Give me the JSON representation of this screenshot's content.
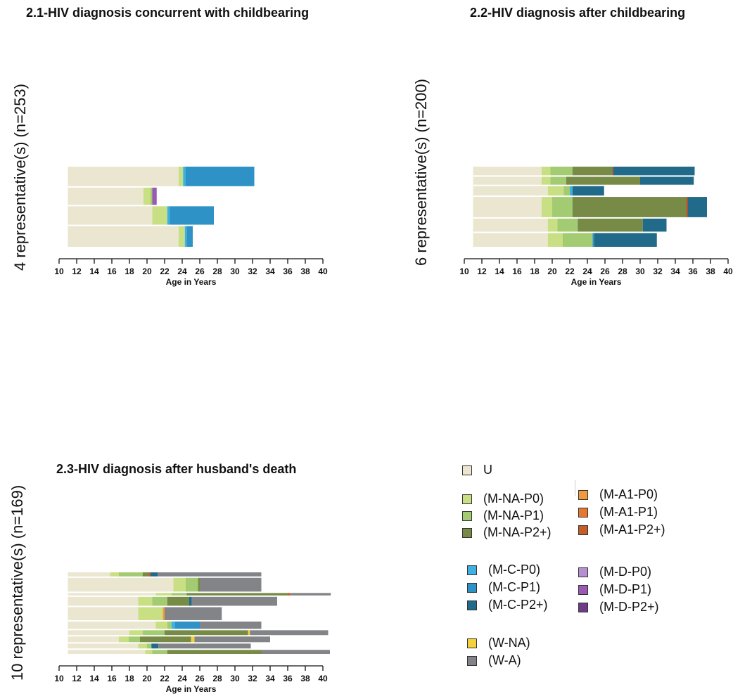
{
  "chart_data": [
    {
      "type": "bar",
      "subtype": "sequence-index-plot",
      "title": "2.1-HIV diagnosis concurrent with childbearing",
      "ylabel": "4 representative(s) (n=253)",
      "xlabel": "Age in Years",
      "xlim": [
        10,
        40
      ],
      "xticks": [
        10,
        12,
        14,
        16,
        18,
        20,
        22,
        24,
        26,
        28,
        30,
        32,
        34,
        36,
        38,
        40
      ],
      "sequences": [
        {
          "weight": 34,
          "segments": [
            [
              "U",
              11,
              23.6
            ],
            [
              "M-NA-P0",
              23.6,
              24.1
            ],
            [
              "M-C-P0",
              24.1,
              24.4
            ],
            [
              "M-C-P1",
              24.4,
              32.2
            ]
          ]
        },
        {
          "weight": 30,
          "segments": [
            [
              "U",
              11,
              19.6
            ],
            [
              "M-NA-P0",
              19.6,
              20.4
            ],
            [
              "M-NA-P1",
              20.4,
              20.6
            ],
            [
              "M-D-P1",
              20.6,
              21.1
            ]
          ]
        },
        {
          "weight": 32,
          "segments": [
            [
              "U",
              11,
              20.6
            ],
            [
              "M-NA-P0",
              20.6,
              22.3
            ],
            [
              "M-C-P0",
              22.3,
              22.6
            ],
            [
              "M-C-P1",
              22.6,
              27.6
            ]
          ]
        },
        {
          "weight": 36,
          "segments": [
            [
              "U",
              11,
              23.6
            ],
            [
              "M-NA-P0",
              23.6,
              24.3
            ],
            [
              "M-C-P0",
              24.3,
              24.5
            ],
            [
              "M-C-P1",
              24.5,
              25.2
            ]
          ]
        }
      ]
    },
    {
      "type": "bar",
      "subtype": "sequence-index-plot",
      "title": "2.2-HIV diagnosis after childbearing",
      "ylabel": "6 representative(s) (n=200)",
      "xlabel": "Age in Years",
      "xlim": [
        10,
        40
      ],
      "xticks": [
        10,
        12,
        14,
        16,
        18,
        20,
        22,
        24,
        26,
        28,
        30,
        32,
        34,
        36,
        38,
        40
      ],
      "sequences": [
        {
          "weight": 12,
          "segments": [
            [
              "U",
              11,
              18.8
            ],
            [
              "M-NA-P0",
              18.8,
              19.8
            ],
            [
              "M-NA-P1",
              19.8,
              22.3
            ],
            [
              "M-NA-P2+",
              22.3,
              26.8
            ],
            [
              "M-A1-P2+",
              26.8,
              26.9
            ],
            [
              "M-C-P2+",
              26.9,
              36.2
            ]
          ]
        },
        {
          "weight": 11,
          "segments": [
            [
              "U",
              11,
              18.8
            ],
            [
              "M-NA-P0",
              18.8,
              19.8
            ],
            [
              "M-NA-P1",
              19.8,
              21.6
            ],
            [
              "M-NA-P2+",
              21.6,
              30.0
            ],
            [
              "M-C-P2+",
              30.0,
              36.1
            ]
          ]
        },
        {
          "weight": 13,
          "segments": [
            [
              "U",
              11,
              19.5
            ],
            [
              "M-NA-P0",
              19.5,
              21.3
            ],
            [
              "M-NA-P1",
              21.3,
              22.0
            ],
            [
              "M-C-P0",
              22.0,
              22.3
            ],
            [
              "M-C-P2+",
              22.3,
              25.9
            ]
          ]
        },
        {
          "weight": 28,
          "segments": [
            [
              "U",
              11,
              18.8
            ],
            [
              "M-NA-P0",
              18.8,
              20.0
            ],
            [
              "M-NA-P1",
              20.0,
              22.3
            ],
            [
              "M-NA-P2+",
              22.3,
              35.2
            ],
            [
              "M-A1-P2+",
              35.2,
              35.4
            ],
            [
              "M-C-P2+",
              35.4,
              37.6
            ]
          ]
        },
        {
          "weight": 18,
          "segments": [
            [
              "U",
              11,
              19.5
            ],
            [
              "M-NA-P0",
              19.5,
              20.6
            ],
            [
              "M-NA-P1",
              20.6,
              22.9
            ],
            [
              "M-NA-P2+",
              22.9,
              30.3
            ],
            [
              "M-C-P2+",
              30.3,
              33.0
            ]
          ]
        },
        {
          "weight": 19,
          "segments": [
            [
              "U",
              11,
              19.5
            ],
            [
              "M-NA-P0",
              19.5,
              21.2
            ],
            [
              "M-NA-P1",
              21.2,
              24.6
            ],
            [
              "M-C-P1",
              24.6,
              24.8
            ],
            [
              "M-C-P2+",
              24.8,
              31.9
            ]
          ]
        }
      ]
    },
    {
      "type": "bar",
      "subtype": "sequence-index-plot",
      "title": "2.3-HIV diagnosis after husband's death",
      "ylabel": "10 representative(s) (n=169)",
      "xlabel": "Age in Years",
      "xlim": [
        10,
        40
      ],
      "xticks": [
        10,
        12,
        14,
        16,
        18,
        20,
        22,
        24,
        26,
        28,
        30,
        32,
        34,
        36,
        38,
        40
      ],
      "sequences": [
        {
          "weight": 5,
          "segments": [
            [
              "U",
              11,
              15.8
            ],
            [
              "M-NA-P0",
              15.8,
              16.8
            ],
            [
              "M-NA-P1",
              16.8,
              19.5
            ],
            [
              "M-NA-P2+",
              19.5,
              20.2
            ],
            [
              "M-A1-P2+",
              20.2,
              20.4
            ],
            [
              "M-C-P2+",
              20.4,
              21.2
            ],
            [
              "W-A",
              21.2,
              33.0
            ]
          ]
        },
        {
          "weight": 17,
          "segments": [
            [
              "U",
              11,
              23.0
            ],
            [
              "M-NA-P0",
              23.0,
              24.4
            ],
            [
              "M-NA-P1",
              24.4,
              25.8
            ],
            [
              "M-NA-P2+",
              25.8,
              26.0
            ],
            [
              "W-A",
              26.0,
              33.0
            ]
          ]
        },
        {
          "weight": 3,
          "segments": [
            [
              "U",
              11,
              21.0
            ],
            [
              "M-NA-P0",
              21.0,
              22.8
            ],
            [
              "M-NA-P1",
              22.8,
              24.5
            ],
            [
              "M-NA-P2+",
              24.5,
              36.0
            ],
            [
              "M-A1-P2+",
              36.0,
              36.3
            ],
            [
              "W-A",
              36.3,
              40.9
            ]
          ]
        },
        {
          "weight": 11,
          "segments": [
            [
              "U",
              11,
              19.0
            ],
            [
              "M-NA-P0",
              19.0,
              20.6
            ],
            [
              "M-NA-P1",
              20.6,
              22.3
            ],
            [
              "M-NA-P2+",
              22.3,
              24.8
            ],
            [
              "M-C-P2+",
              24.8,
              25.1
            ],
            [
              "W-A",
              25.1,
              34.8
            ]
          ]
        },
        {
          "weight": 16,
          "segments": [
            [
              "U",
              11,
              19.0
            ],
            [
              "M-NA-P0",
              19.0,
              21.8
            ],
            [
              "M-A1-P0",
              21.8,
              22.0
            ],
            [
              "W-A",
              22.0,
              28.5
            ]
          ]
        },
        {
          "weight": 9,
          "segments": [
            [
              "U",
              11,
              21.0
            ],
            [
              "M-NA-P0",
              21.0,
              22.3
            ],
            [
              "M-NA-P1",
              22.3,
              22.8
            ],
            [
              "M-C-P0",
              22.8,
              23.2
            ],
            [
              "M-C-P1",
              23.2,
              26.0
            ],
            [
              "W-A",
              26.0,
              33.0
            ]
          ]
        },
        {
          "weight": 6,
          "segments": [
            [
              "U",
              11,
              18.0
            ],
            [
              "M-NA-P0",
              18.0,
              19.5
            ],
            [
              "M-NA-P1",
              19.5,
              22.0
            ],
            [
              "M-NA-P2+",
              22.0,
              31.5
            ],
            [
              "W-NA",
              31.5,
              31.7
            ],
            [
              "W-A",
              31.7,
              40.6
            ]
          ]
        },
        {
          "weight": 7,
          "segments": [
            [
              "U",
              11,
              16.8
            ],
            [
              "M-NA-P0",
              16.8,
              17.9
            ],
            [
              "M-NA-P1",
              17.9,
              19.2
            ],
            [
              "M-NA-P2+",
              19.2,
              25.0
            ],
            [
              "W-NA",
              25.0,
              25.4
            ],
            [
              "W-A",
              25.4,
              34.0
            ]
          ]
        },
        {
          "weight": 6,
          "segments": [
            [
              "U",
              11,
              19.0
            ],
            [
              "M-NA-P0",
              19.0,
              20.0
            ],
            [
              "M-NA-P1",
              20.0,
              20.5
            ],
            [
              "M-C-P2+",
              20.5,
              21.3
            ],
            [
              "W-A",
              21.3,
              31.8
            ]
          ]
        },
        {
          "weight": 5,
          "segments": [
            [
              "U",
              11,
              19.8
            ],
            [
              "M-NA-P0",
              19.8,
              20.6
            ],
            [
              "M-NA-P1",
              20.6,
              22.3
            ],
            [
              "M-NA-P2+",
              22.3,
              33.0
            ],
            [
              "W-A",
              33.0,
              40.8
            ]
          ]
        }
      ]
    }
  ],
  "legend": [
    {
      "code": "U",
      "label": "U",
      "color": "#eae6d0"
    },
    {
      "code": "M-NA-P0",
      "label": "(M-NA-P0)",
      "color": "#c9df84"
    },
    {
      "code": "M-NA-P1",
      "label": "(M-NA-P1)",
      "color": "#a3cc72"
    },
    {
      "code": "M-NA-P2+",
      "label": "(M-NA-P2+)",
      "color": "#778b47"
    },
    {
      "code": "M-A1-P0",
      "label": "(M-A1-P0)",
      "color": "#f39a3c"
    },
    {
      "code": "M-A1-P1",
      "label": "(M-A1-P1)",
      "color": "#e5782e"
    },
    {
      "code": "M-A1-P2+",
      "label": "(M-A1-P2+)",
      "color": "#c45d27"
    },
    {
      "code": "M-C-P0",
      "label": "(M-C-P0)",
      "color": "#3fb1e0"
    },
    {
      "code": "M-C-P1",
      "label": "(M-C-P1)",
      "color": "#2e92c7"
    },
    {
      "code": "M-C-P2+",
      "label": "(M-C-P2+)",
      "color": "#226a89"
    },
    {
      "code": "M-D-P0",
      "label": "(M-D-P0)",
      "color": "#b58fcf"
    },
    {
      "code": "M-D-P1",
      "label": "(M-D-P1)",
      "color": "#9a59b4"
    },
    {
      "code": "M-D-P2+",
      "label": "(M-D-P2+)",
      "color": "#6d3b88"
    },
    {
      "code": "W-NA",
      "label": "(W-NA)",
      "color": "#f4d03a"
    },
    {
      "code": "W-A",
      "label": "(W-A)",
      "color": "#828487"
    }
  ]
}
